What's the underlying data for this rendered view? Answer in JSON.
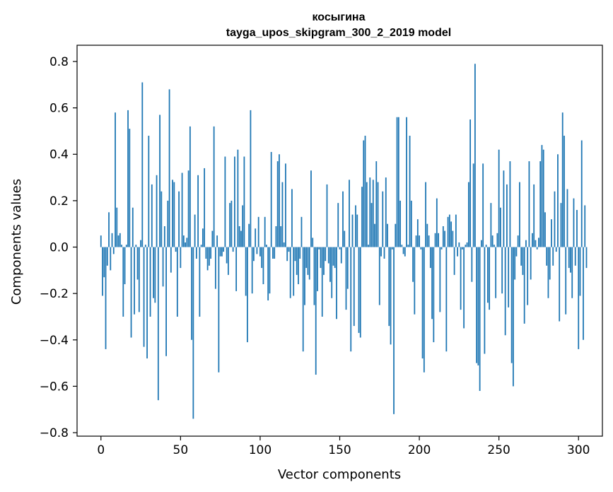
{
  "chart_data": {
    "type": "bar",
    "title": "косыгина",
    "subtitle": "tayga_upos_skipgram_300_2_2019 model",
    "xlabel": "Vector components",
    "ylabel": "Components values",
    "xlim": [
      -15,
      315
    ],
    "ylim": [
      -0.815,
      0.87
    ],
    "xticks": [
      0,
      50,
      100,
      150,
      200,
      250,
      300
    ],
    "yticks": [
      0.8,
      0.6,
      0.4,
      0.2,
      0.0,
      -0.2,
      -0.4,
      -0.6,
      -0.8
    ],
    "ytick_labels": [
      "0.8",
      "0.6",
      "0.4",
      "0.2",
      "0.0",
      "−0.2",
      "−0.4",
      "−0.6",
      "−0.8"
    ],
    "bar_color": "#1f77b4",
    "grid": false,
    "values": [
      0.05,
      -0.21,
      -0.13,
      -0.44,
      -0.08,
      0.15,
      -0.1,
      0.06,
      -0.03,
      0.58,
      0.17,
      0.05,
      0.06,
      0.01,
      -0.3,
      -0.16,
      0.01,
      0.59,
      0.51,
      -0.39,
      0.17,
      -0.29,
      0.01,
      -0.14,
      -0.28,
      0.03,
      0.71,
      -0.43,
      0.01,
      -0.48,
      0.48,
      -0.3,
      0.27,
      -0.22,
      -0.24,
      0.31,
      -0.66,
      0.57,
      0.24,
      -0.17,
      0.09,
      -0.47,
      0.2,
      0.68,
      -0.11,
      0.29,
      0.28,
      -0.02,
      -0.3,
      0.24,
      -0.09,
      0.32,
      0.05,
      0.02,
      0.04,
      0.33,
      0.52,
      -0.4,
      -0.74,
      0.14,
      -0.05,
      0.31,
      -0.3,
      0.01,
      0.08,
      0.34,
      -0.05,
      -0.1,
      -0.08,
      -0.05,
      0.07,
      0.52,
      -0.18,
      0.05,
      -0.54,
      -0.04,
      -0.04,
      -0.02,
      0.39,
      -0.07,
      -0.12,
      0.19,
      0.2,
      -0.02,
      0.39,
      -0.19,
      0.42,
      0.09,
      0.07,
      0.18,
      0.39,
      -0.21,
      -0.41,
      0.1,
      0.59,
      -0.2,
      -0.06,
      0.08,
      -0.03,
      0.13,
      -0.04,
      -0.09,
      -0.16,
      0.13,
      0.01,
      -0.23,
      -0.2,
      0.41,
      -0.05,
      -0.05,
      0.09,
      0.37,
      0.4,
      0.09,
      0.28,
      0.02,
      0.36,
      -0.06,
      -0.02,
      -0.22,
      0.25,
      -0.21,
      -0.06,
      -0.12,
      -0.16,
      -0.05,
      0.13,
      -0.45,
      -0.25,
      -0.09,
      -0.12,
      -0.14,
      0.33,
      0.04,
      -0.25,
      -0.55,
      -0.19,
      -0.01,
      -0.09,
      -0.3,
      -0.12,
      -0.06,
      0.27,
      -0.07,
      -0.15,
      -0.22,
      -0.08,
      -0.09,
      -0.31,
      0.19,
      -0.01,
      -0.07,
      0.24,
      0.07,
      -0.27,
      -0.18,
      0.29,
      -0.45,
      0.14,
      -0.34,
      0.18,
      0.14,
      -0.37,
      -0.39,
      0.26,
      0.46,
      0.48,
      0.28,
      0.01,
      0.3,
      0.19,
      0.29,
      0.1,
      0.37,
      0.28,
      -0.25,
      -0.04,
      0.24,
      -0.05,
      0.3,
      0.1,
      -0.34,
      -0.42,
      -0.01,
      -0.72,
      0.1,
      0.56,
      0.56,
      0.2,
      0.01,
      -0.03,
      -0.04,
      0.56,
      0.01,
      0.48,
      0.2,
      -0.15,
      -0.29,
      0.05,
      0.12,
      0.05,
      -0.01,
      -0.48,
      -0.54,
      0.28,
      0.1,
      0.05,
      -0.09,
      -0.31,
      -0.41,
      0.06,
      0.21,
      0.06,
      -0.28,
      -0.01,
      0.09,
      0.07,
      -0.45,
      0.13,
      0.14,
      0.11,
      0.07,
      -0.12,
      0.14,
      -0.04,
      0.02,
      -0.27,
      -0.01,
      -0.35,
      0.01,
      0.02,
      0.28,
      0.55,
      -0.15,
      0.36,
      0.79,
      -0.5,
      -0.51,
      -0.62,
      0.03,
      0.36,
      -0.46,
      0.01,
      -0.24,
      -0.27,
      0.19,
      0.05,
      0.01,
      -0.22,
      0.06,
      0.42,
      0.17,
      -0.2,
      0.33,
      -0.38,
      0.27,
      -0.26,
      0.37,
      -0.5,
      -0.6,
      -0.14,
      -0.04,
      0.05,
      0.28,
      -0.08,
      -0.12,
      -0.33,
      0.03,
      -0.25,
      0.37,
      -0.14,
      0.06,
      0.27,
      0.03,
      -0.01,
      0.04,
      0.37,
      0.44,
      0.42,
      0.15,
      -0.08,
      -0.22,
      -0.14,
      0.12,
      -0.08,
      0.24,
      -0.02,
      0.4,
      -0.32,
      0.19,
      0.58,
      0.48,
      -0.29,
      0.25,
      -0.09,
      -0.11,
      -0.22,
      0.21,
      -0.08,
      0.16,
      -0.44,
      -0.21,
      0.46,
      -0.4,
      0.18,
      -0.09
    ]
  }
}
